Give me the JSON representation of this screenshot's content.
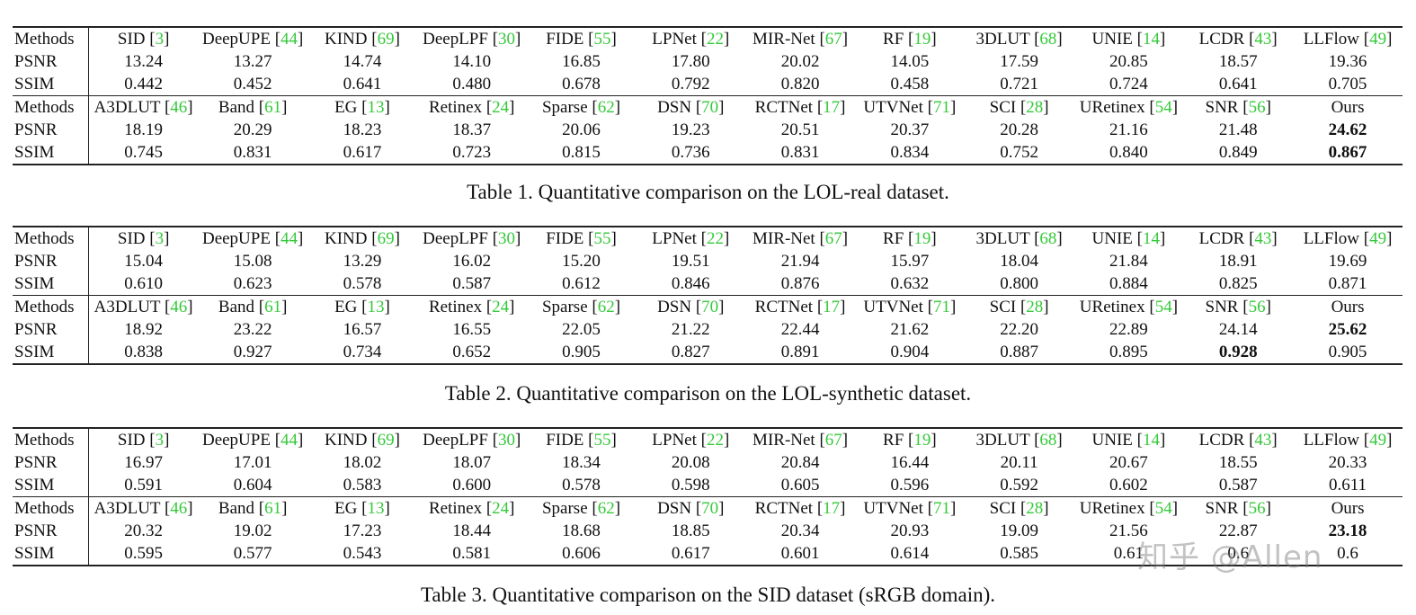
{
  "tables": [
    {
      "id": "t1",
      "caption": "Table 1. Quantitative comparison on the LOL-real dataset.",
      "blocks": [
        {
          "header_label": "Methods",
          "methods": [
            {
              "name": "SID",
              "ref": "3"
            },
            {
              "name": "DeepUPE",
              "ref": "44"
            },
            {
              "name": "KIND",
              "ref": "69"
            },
            {
              "name": "DeepLPF",
              "ref": "30"
            },
            {
              "name": "FIDE",
              "ref": "55"
            },
            {
              "name": "LPNet",
              "ref": "22"
            },
            {
              "name": "MIR-Net",
              "ref": "67"
            },
            {
              "name": "RF",
              "ref": "19"
            },
            {
              "name": "3DLUT",
              "ref": "68"
            },
            {
              "name": "UNIE",
              "ref": "14"
            },
            {
              "name": "LCDR",
              "ref": "43"
            },
            {
              "name": "LLFlow",
              "ref": "49"
            }
          ],
          "rows": [
            {
              "label": "PSNR",
              "values": [
                "13.24",
                "13.27",
                "14.74",
                "14.10",
                "16.85",
                "17.80",
                "20.02",
                "14.05",
                "17.59",
                "20.85",
                "18.57",
                "19.36"
              ],
              "bold": []
            },
            {
              "label": "SSIM",
              "values": [
                "0.442",
                "0.452",
                "0.641",
                "0.480",
                "0.678",
                "0.792",
                "0.820",
                "0.458",
                "0.721",
                "0.724",
                "0.641",
                "0.705"
              ],
              "bold": []
            }
          ]
        },
        {
          "header_label": "Methods",
          "methods": [
            {
              "name": "A3DLUT",
              "ref": "46"
            },
            {
              "name": "Band",
              "ref": "61"
            },
            {
              "name": "EG",
              "ref": "13"
            },
            {
              "name": "Retinex",
              "ref": "24"
            },
            {
              "name": "Sparse",
              "ref": "62"
            },
            {
              "name": "DSN",
              "ref": "70"
            },
            {
              "name": "RCTNet",
              "ref": "17"
            },
            {
              "name": "UTVNet",
              "ref": "71"
            },
            {
              "name": "SCI",
              "ref": "28"
            },
            {
              "name": "URetinex",
              "ref": "54"
            },
            {
              "name": "SNR",
              "ref": "56"
            },
            {
              "name": "Ours",
              "ref": ""
            }
          ],
          "rows": [
            {
              "label": "PSNR",
              "values": [
                "18.19",
                "20.29",
                "18.23",
                "18.37",
                "20.06",
                "19.23",
                "20.51",
                "20.37",
                "20.28",
                "21.16",
                "21.48",
                "24.62"
              ],
              "bold": [
                11
              ]
            },
            {
              "label": "SSIM",
              "values": [
                "0.745",
                "0.831",
                "0.617",
                "0.723",
                "0.815",
                "0.736",
                "0.831",
                "0.834",
                "0.752",
                "0.840",
                "0.849",
                "0.867"
              ],
              "bold": [
                11
              ]
            }
          ]
        }
      ]
    },
    {
      "id": "t2",
      "caption": "Table 2. Quantitative comparison on the LOL-synthetic dataset.",
      "blocks": [
        {
          "header_label": "Methods",
          "methods": [
            {
              "name": "SID",
              "ref": "3"
            },
            {
              "name": "DeepUPE",
              "ref": "44"
            },
            {
              "name": "KIND",
              "ref": "69"
            },
            {
              "name": "DeepLPF",
              "ref": "30"
            },
            {
              "name": "FIDE",
              "ref": "55"
            },
            {
              "name": "LPNet",
              "ref": "22"
            },
            {
              "name": "MIR-Net",
              "ref": "67"
            },
            {
              "name": "RF",
              "ref": "19"
            },
            {
              "name": "3DLUT",
              "ref": "68"
            },
            {
              "name": "UNIE",
              "ref": "14"
            },
            {
              "name": "LCDR",
              "ref": "43"
            },
            {
              "name": "LLFlow",
              "ref": "49"
            }
          ],
          "rows": [
            {
              "label": "PSNR",
              "values": [
                "15.04",
                "15.08",
                "13.29",
                "16.02",
                "15.20",
                "19.51",
                "21.94",
                "15.97",
                "18.04",
                "21.84",
                "18.91",
                "19.69"
              ],
              "bold": []
            },
            {
              "label": "SSIM",
              "values": [
                "0.610",
                "0.623",
                "0.578",
                "0.587",
                "0.612",
                "0.846",
                "0.876",
                "0.632",
                "0.800",
                "0.884",
                "0.825",
                "0.871"
              ],
              "bold": []
            }
          ]
        },
        {
          "header_label": "Methods",
          "methods": [
            {
              "name": "A3DLUT",
              "ref": "46"
            },
            {
              "name": "Band",
              "ref": "61"
            },
            {
              "name": "EG",
              "ref": "13"
            },
            {
              "name": "Retinex",
              "ref": "24"
            },
            {
              "name": "Sparse",
              "ref": "62"
            },
            {
              "name": "DSN",
              "ref": "70"
            },
            {
              "name": "RCTNet",
              "ref": "17"
            },
            {
              "name": "UTVNet",
              "ref": "71"
            },
            {
              "name": "SCI",
              "ref": "28"
            },
            {
              "name": "URetinex",
              "ref": "54"
            },
            {
              "name": "SNR",
              "ref": "56"
            },
            {
              "name": "Ours",
              "ref": ""
            }
          ],
          "rows": [
            {
              "label": "PSNR",
              "values": [
                "18.92",
                "23.22",
                "16.57",
                "16.55",
                "22.05",
                "21.22",
                "22.44",
                "21.62",
                "22.20",
                "22.89",
                "24.14",
                "25.62"
              ],
              "bold": [
                11
              ]
            },
            {
              "label": "SSIM",
              "values": [
                "0.838",
                "0.927",
                "0.734",
                "0.652",
                "0.905",
                "0.827",
                "0.891",
                "0.904",
                "0.887",
                "0.895",
                "0.928",
                "0.905"
              ],
              "bold": [
                10
              ]
            }
          ]
        }
      ]
    },
    {
      "id": "t3",
      "caption": "Table 3. Quantitative comparison on the SID dataset (sRGB domain).",
      "blocks": [
        {
          "header_label": "Methods",
          "methods": [
            {
              "name": "SID",
              "ref": "3"
            },
            {
              "name": "DeepUPE",
              "ref": "44"
            },
            {
              "name": "KIND",
              "ref": "69"
            },
            {
              "name": "DeepLPF",
              "ref": "30"
            },
            {
              "name": "FIDE",
              "ref": "55"
            },
            {
              "name": "LPNet",
              "ref": "22"
            },
            {
              "name": "MIR-Net",
              "ref": "67"
            },
            {
              "name": "RF",
              "ref": "19"
            },
            {
              "name": "3DLUT",
              "ref": "68"
            },
            {
              "name": "UNIE",
              "ref": "14"
            },
            {
              "name": "LCDR",
              "ref": "43"
            },
            {
              "name": "LLFlow",
              "ref": "49"
            }
          ],
          "rows": [
            {
              "label": "PSNR",
              "values": [
                "16.97",
                "17.01",
                "18.02",
                "18.07",
                "18.34",
                "20.08",
                "20.84",
                "16.44",
                "20.11",
                "20.67",
                "18.55",
                "20.33"
              ],
              "bold": []
            },
            {
              "label": "SSIM",
              "values": [
                "0.591",
                "0.604",
                "0.583",
                "0.600",
                "0.578",
                "0.598",
                "0.605",
                "0.596",
                "0.592",
                "0.602",
                "0.587",
                "0.611"
              ],
              "bold": []
            }
          ]
        },
        {
          "header_label": "Methods",
          "methods": [
            {
              "name": "A3DLUT",
              "ref": "46"
            },
            {
              "name": "Band",
              "ref": "61"
            },
            {
              "name": "EG",
              "ref": "13"
            },
            {
              "name": "Retinex",
              "ref": "24"
            },
            {
              "name": "Sparse",
              "ref": "62"
            },
            {
              "name": "DSN",
              "ref": "70"
            },
            {
              "name": "RCTNet",
              "ref": "17"
            },
            {
              "name": "UTVNet",
              "ref": "71"
            },
            {
              "name": "SCI",
              "ref": "28"
            },
            {
              "name": "URetinex",
              "ref": "54"
            },
            {
              "name": "SNR",
              "ref": "56"
            },
            {
              "name": "Ours",
              "ref": ""
            }
          ],
          "rows": [
            {
              "label": "PSNR",
              "values": [
                "20.32",
                "19.02",
                "17.23",
                "18.44",
                "18.68",
                "18.85",
                "20.34",
                "20.93",
                "19.09",
                "21.56",
                "22.87",
                "23.18"
              ],
              "bold": [
                11
              ]
            },
            {
              "label": "SSIM",
              "values": [
                "0.595",
                "0.577",
                "0.543",
                "0.581",
                "0.606",
                "0.617",
                "0.601",
                "0.614",
                "0.585",
                "0.61",
                "0.6",
                "0.6"
              ],
              "bold": []
            }
          ]
        }
      ]
    }
  ],
  "watermark": "知乎 @Allen",
  "colors": {
    "citation": "#35c93a",
    "text": "#111111",
    "rule": "#222222"
  }
}
